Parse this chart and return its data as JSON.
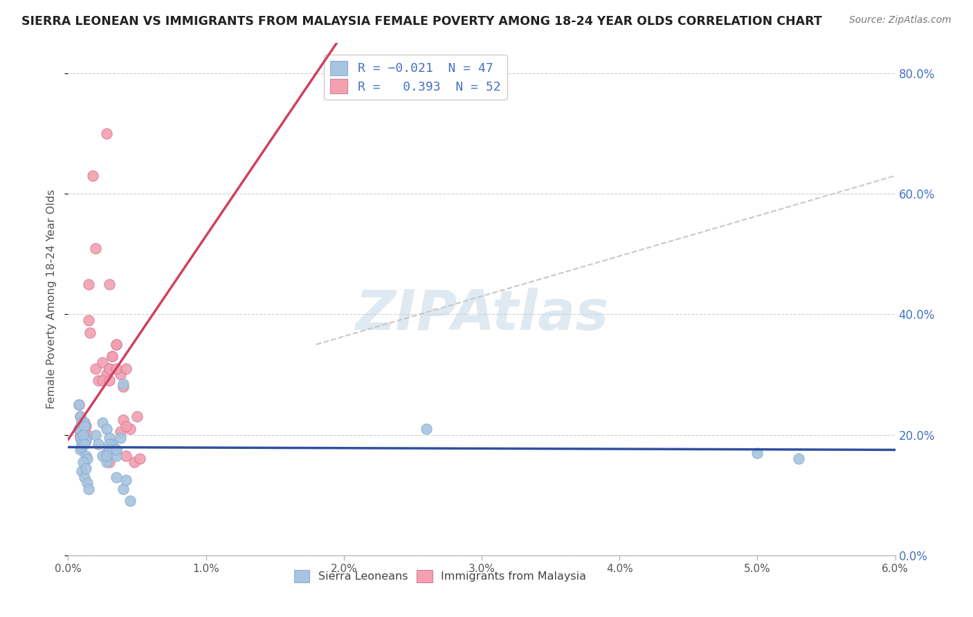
{
  "title": "SIERRA LEONEAN VS IMMIGRANTS FROM MALAYSIA FEMALE POVERTY AMONG 18-24 YEAR OLDS CORRELATION CHART",
  "source": "Source: ZipAtlas.com",
  "ylabel": "Female Poverty Among 18-24 Year Olds",
  "watermark": "ZIPAtlas",
  "xlim": [
    0.0,
    0.06
  ],
  "ylim": [
    0.0,
    0.85
  ],
  "yticks": [
    0.0,
    0.2,
    0.4,
    0.6,
    0.8
  ],
  "xticks": [
    0.0,
    0.01,
    0.02,
    0.03,
    0.04,
    0.05,
    0.06
  ],
  "blue_color": "#a8c4e0",
  "pink_color": "#f4a0b0",
  "blue_line_color": "#3050a0",
  "pink_line_color": "#d04060",
  "dashed_line_color": "#c8c8c8",
  "text_color": "#4472c4",
  "legend_label1": "R = -0.021  N = 47",
  "legend_label2": "R =  0.393  N = 52",
  "bottom_label1": "Sierra Leoneans",
  "bottom_label2": "Immigrants from Malaysia",
  "blue_x": [
    0.0008,
    0.0009,
    0.001,
    0.001,
    0.0011,
    0.0012,
    0.0008,
    0.0009,
    0.001,
    0.0011,
    0.0012,
    0.0013,
    0.0009,
    0.001,
    0.0011,
    0.0012,
    0.0013,
    0.0014,
    0.001,
    0.0011,
    0.0012,
    0.0013,
    0.0014,
    0.0015,
    0.002,
    0.0022,
    0.0025,
    0.0028,
    0.003,
    0.0032,
    0.0025,
    0.0028,
    0.003,
    0.0032,
    0.0035,
    0.0038,
    0.0035,
    0.004,
    0.0042,
    0.0045,
    0.003,
    0.0028,
    0.0035,
    0.004,
    0.026,
    0.05,
    0.053
  ],
  "blue_y": [
    0.25,
    0.23,
    0.22,
    0.21,
    0.2,
    0.22,
    0.21,
    0.195,
    0.185,
    0.2,
    0.215,
    0.19,
    0.175,
    0.18,
    0.2,
    0.185,
    0.165,
    0.16,
    0.14,
    0.155,
    0.13,
    0.145,
    0.12,
    0.11,
    0.2,
    0.185,
    0.22,
    0.21,
    0.195,
    0.185,
    0.165,
    0.155,
    0.185,
    0.175,
    0.165,
    0.195,
    0.13,
    0.11,
    0.125,
    0.09,
    0.175,
    0.165,
    0.175,
    0.285,
    0.21,
    0.17,
    0.16
  ],
  "pink_x": [
    0.0008,
    0.0009,
    0.001,
    0.001,
    0.0011,
    0.0012,
    0.0008,
    0.0009,
    0.001,
    0.0011,
    0.0012,
    0.0013,
    0.0009,
    0.001,
    0.0011,
    0.0012,
    0.0013,
    0.0014,
    0.0015,
    0.0016,
    0.0015,
    0.002,
    0.0022,
    0.0025,
    0.0028,
    0.003,
    0.0032,
    0.0025,
    0.003,
    0.0032,
    0.0035,
    0.0038,
    0.003,
    0.0035,
    0.004,
    0.0042,
    0.0028,
    0.003,
    0.0035,
    0.004,
    0.0042,
    0.0045,
    0.0048,
    0.005,
    0.0052,
    0.0028,
    0.0018,
    0.002,
    0.003,
    0.0035,
    0.0038,
    0.0042
  ],
  "pink_y": [
    0.25,
    0.23,
    0.22,
    0.215,
    0.2,
    0.22,
    0.21,
    0.2,
    0.19,
    0.205,
    0.215,
    0.215,
    0.195,
    0.21,
    0.2,
    0.215,
    0.195,
    0.2,
    0.39,
    0.37,
    0.45,
    0.31,
    0.29,
    0.32,
    0.3,
    0.31,
    0.33,
    0.29,
    0.31,
    0.33,
    0.35,
    0.3,
    0.29,
    0.31,
    0.28,
    0.31,
    0.17,
    0.155,
    0.175,
    0.225,
    0.165,
    0.21,
    0.155,
    0.23,
    0.16,
    0.7,
    0.63,
    0.51,
    0.45,
    0.35,
    0.205,
    0.215
  ]
}
